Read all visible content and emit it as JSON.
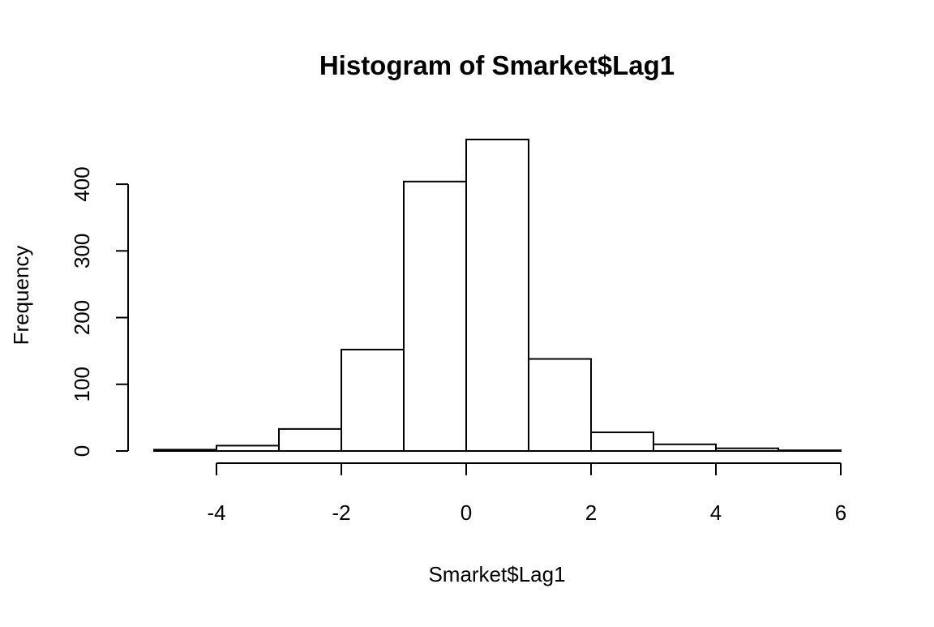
{
  "chart_data": {
    "type": "bar",
    "title": "Histogram of Smarket$Lag1",
    "xlabel": "Smarket$Lag1",
    "ylabel": "Frequency",
    "bin_edges": [
      -5,
      -4,
      -3,
      -2,
      -1,
      0,
      1,
      2,
      3,
      4,
      5,
      6
    ],
    "values": [
      2,
      8,
      33,
      152,
      404,
      467,
      138,
      28,
      10,
      4,
      1
    ],
    "xlim": [
      -5,
      6
    ],
    "ylim": [
      0,
      467
    ],
    "x_ticks": [
      -4,
      -2,
      0,
      2,
      4,
      6
    ],
    "x_tick_labels": [
      "-4",
      "-2",
      "0",
      "2",
      "4",
      "6"
    ],
    "y_ticks": [
      0,
      100,
      200,
      300,
      400
    ],
    "y_tick_labels": [
      "0",
      "100",
      "200",
      "300",
      "400"
    ],
    "grid": false,
    "legend": "none",
    "colors": {
      "bar_fill": "#ffffff",
      "bar_stroke": "#000000",
      "axis": "#000000",
      "background": "#ffffff"
    }
  }
}
